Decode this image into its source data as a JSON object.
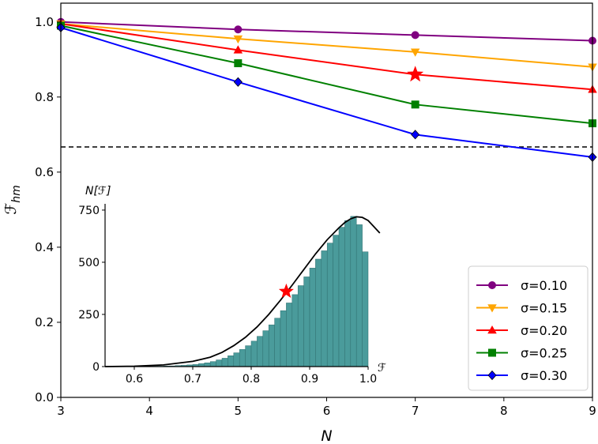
{
  "chart_data": {
    "main": {
      "type": "line",
      "title": "",
      "xlabel": "N",
      "ylabel": "ℱhm",
      "ylabel_base": "ℱ",
      "ylabel_sub": "hm",
      "xlim": [
        3,
        9
      ],
      "ylim": [
        0.0,
        1.05
      ],
      "xticks": [
        "3",
        "4",
        "5",
        "6",
        "7",
        "8",
        "9"
      ],
      "yticks": [
        "0.0",
        "0.2",
        "0.4",
        "0.6",
        "0.8",
        "1.0"
      ],
      "x": [
        3,
        5,
        7,
        9
      ],
      "series": [
        {
          "name": "σ=0.10",
          "color": "#800080",
          "marker": "circle",
          "values": [
            1.0,
            0.98,
            0.965,
            0.95
          ]
        },
        {
          "name": "σ=0.15",
          "color": "#ffa500",
          "marker": "triangle-down",
          "values": [
            0.995,
            0.955,
            0.92,
            0.88
          ]
        },
        {
          "name": "σ=0.20",
          "color": "#ff0000",
          "marker": "triangle-up",
          "values": [
            0.995,
            0.925,
            0.86,
            0.82
          ]
        },
        {
          "name": "σ=0.25",
          "color": "#008000",
          "marker": "square",
          "values": [
            0.99,
            0.89,
            0.78,
            0.73
          ]
        },
        {
          "name": "σ=0.30",
          "color": "#0000ff",
          "marker": "diamond",
          "values": [
            0.985,
            0.84,
            0.7,
            0.64
          ]
        }
      ],
      "reference_line": {
        "y": 0.667,
        "style": "dashed",
        "color": "#000000"
      },
      "highlight": {
        "x": 7,
        "y": 0.86,
        "marker": "star",
        "color": "#ff0000"
      },
      "legend_position": "lower-right"
    },
    "inset": {
      "type": "bar",
      "title": "",
      "xlabel": "ℱ",
      "ylabel": "N[ℱ]",
      "xlim": [
        0.55,
        1.0
      ],
      "ylim": [
        0,
        780
      ],
      "xticks": [
        "0.6",
        "0.7",
        "0.8",
        "0.9",
        "1.0"
      ],
      "yticks": [
        "0",
        "250",
        "500",
        "750"
      ],
      "bin_width": 0.01,
      "bar_color": "#4a9b9b",
      "bins": [
        {
          "x": 0.55,
          "v": 0
        },
        {
          "x": 0.56,
          "v": 0
        },
        {
          "x": 0.57,
          "v": 0
        },
        {
          "x": 0.58,
          "v": 0
        },
        {
          "x": 0.59,
          "v": 0
        },
        {
          "x": 0.6,
          "v": 1
        },
        {
          "x": 0.61,
          "v": 1
        },
        {
          "x": 0.62,
          "v": 1
        },
        {
          "x": 0.63,
          "v": 2
        },
        {
          "x": 0.64,
          "v": 2
        },
        {
          "x": 0.65,
          "v": 3
        },
        {
          "x": 0.66,
          "v": 3
        },
        {
          "x": 0.67,
          "v": 5
        },
        {
          "x": 0.68,
          "v": 6
        },
        {
          "x": 0.69,
          "v": 8
        },
        {
          "x": 0.7,
          "v": 10
        },
        {
          "x": 0.71,
          "v": 14
        },
        {
          "x": 0.72,
          "v": 18
        },
        {
          "x": 0.73,
          "v": 24
        },
        {
          "x": 0.74,
          "v": 32
        },
        {
          "x": 0.75,
          "v": 40
        },
        {
          "x": 0.76,
          "v": 52
        },
        {
          "x": 0.77,
          "v": 66
        },
        {
          "x": 0.78,
          "v": 82
        },
        {
          "x": 0.79,
          "v": 100
        },
        {
          "x": 0.8,
          "v": 122
        },
        {
          "x": 0.81,
          "v": 145
        },
        {
          "x": 0.82,
          "v": 172
        },
        {
          "x": 0.83,
          "v": 200
        },
        {
          "x": 0.84,
          "v": 232
        },
        {
          "x": 0.85,
          "v": 268
        },
        {
          "x": 0.86,
          "v": 305
        },
        {
          "x": 0.87,
          "v": 345
        },
        {
          "x": 0.88,
          "v": 388
        },
        {
          "x": 0.89,
          "v": 430
        },
        {
          "x": 0.9,
          "v": 472
        },
        {
          "x": 0.91,
          "v": 515
        },
        {
          "x": 0.92,
          "v": 555
        },
        {
          "x": 0.93,
          "v": 592
        },
        {
          "x": 0.94,
          "v": 630
        },
        {
          "x": 0.95,
          "v": 668
        },
        {
          "x": 0.96,
          "v": 700
        },
        {
          "x": 0.97,
          "v": 720
        },
        {
          "x": 0.98,
          "v": 680
        },
        {
          "x": 0.99,
          "v": 550
        }
      ],
      "fit_curve": [
        [
          0.55,
          0
        ],
        [
          0.6,
          2
        ],
        [
          0.65,
          8
        ],
        [
          0.7,
          25
        ],
        [
          0.73,
          45
        ],
        [
          0.75,
          68
        ],
        [
          0.77,
          100
        ],
        [
          0.79,
          140
        ],
        [
          0.81,
          190
        ],
        [
          0.83,
          250
        ],
        [
          0.85,
          318
        ],
        [
          0.87,
          390
        ],
        [
          0.89,
          465
        ],
        [
          0.91,
          540
        ],
        [
          0.93,
          608
        ],
        [
          0.95,
          665
        ],
        [
          0.96,
          690
        ],
        [
          0.97,
          708
        ],
        [
          0.98,
          718
        ],
        [
          0.99,
          715
        ],
        [
          1.0,
          700
        ],
        [
          1.01,
          670
        ],
        [
          1.02,
          640
        ]
      ],
      "highlight": {
        "x": 0.86,
        "y": 360,
        "marker": "star",
        "color": "#ff0000"
      }
    }
  }
}
